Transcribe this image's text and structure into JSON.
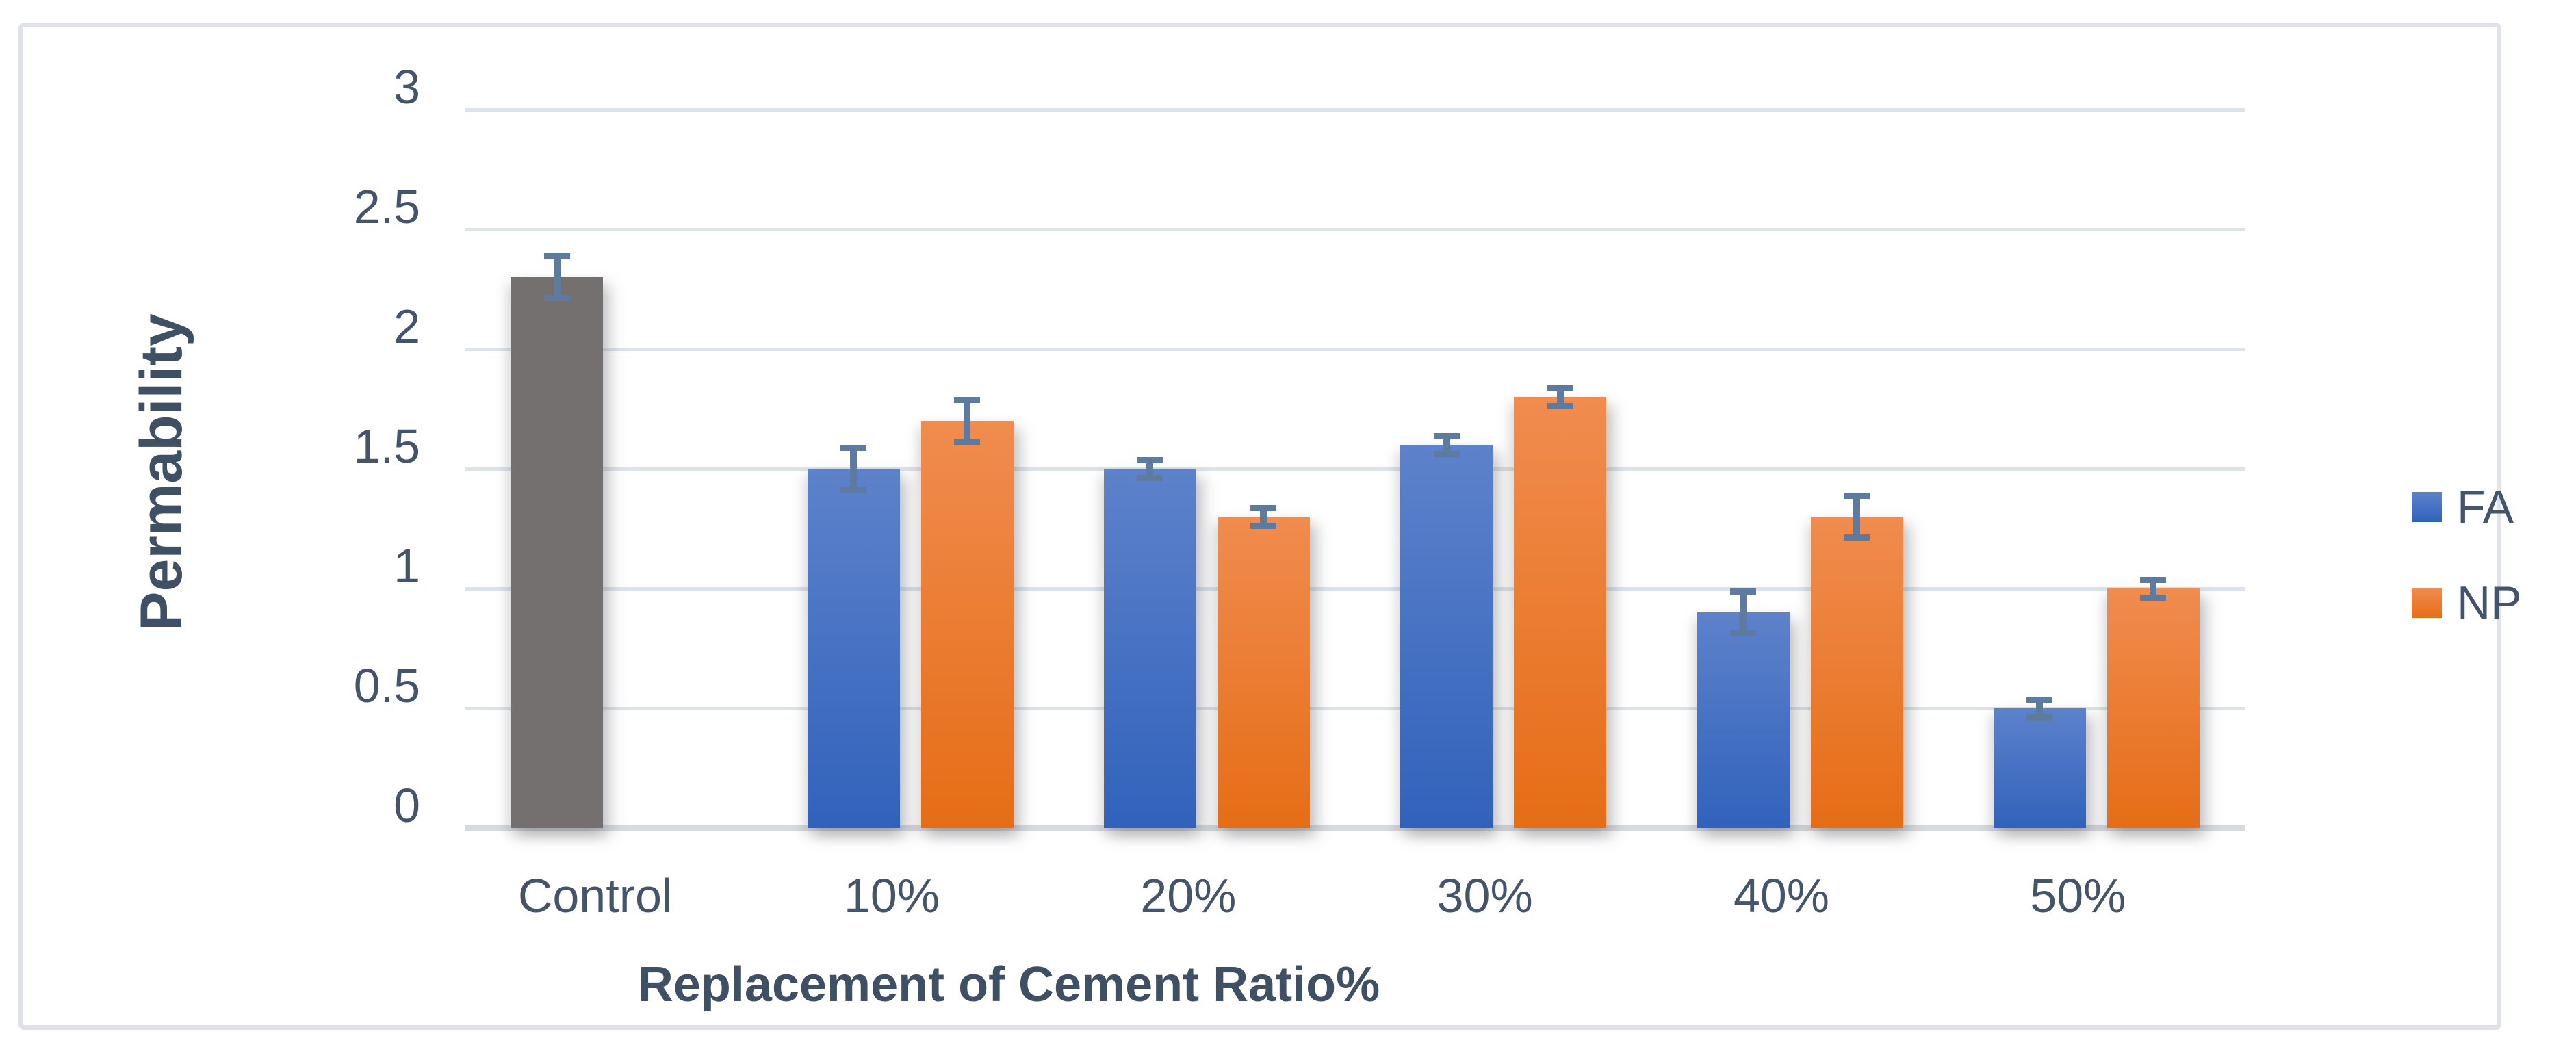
{
  "chart_data": {
    "type": "bar",
    "title": "",
    "xlabel": "Replacement of Cement Ratio%",
    "ylabel": "Permability",
    "ylim": [
      0,
      3
    ],
    "y_tick_labels": [
      "3",
      "2.5",
      "2",
      "1.5",
      "1",
      "0.5",
      "0"
    ],
    "categories": [
      "Control",
      "10%",
      "20%",
      "30%",
      "40%",
      "50%"
    ],
    "series": [
      {
        "name": "FA",
        "values": [
          2.3,
          1.5,
          1.5,
          1.6,
          0.9,
          0.5
        ],
        "errors": [
          0.1,
          0.1,
          0.05,
          0.05,
          0.1,
          0.05
        ],
        "point_fills": [
          "control",
          null,
          null,
          null,
          null,
          null
        ]
      },
      {
        "name": "NP",
        "values": [
          null,
          1.7,
          1.3,
          1.8,
          1.3,
          1.0
        ],
        "errors": [
          null,
          0.1,
          0.05,
          0.05,
          0.1,
          0.05
        ],
        "point_fills": [
          null,
          null,
          null,
          null,
          null,
          null
        ]
      }
    ],
    "legend": [
      {
        "label": "FA",
        "color_key": "fa"
      },
      {
        "label": "NP",
        "color_key": "np"
      }
    ],
    "legend_position": "right",
    "grid": true,
    "error_bars": true,
    "colors": {
      "fa_top": "#5d82cb",
      "fa_bottom": "#3162bb",
      "np_top": "#f08c4f",
      "np_bottom": "#e66d16",
      "control": "#757070",
      "error_bar": "#5e7a9e",
      "grid_line": "#dde3ea",
      "axis_line": "#d6dbe2",
      "text": "#44546a",
      "frame_border": "#dfe3e9",
      "background": "#ffffff"
    }
  }
}
